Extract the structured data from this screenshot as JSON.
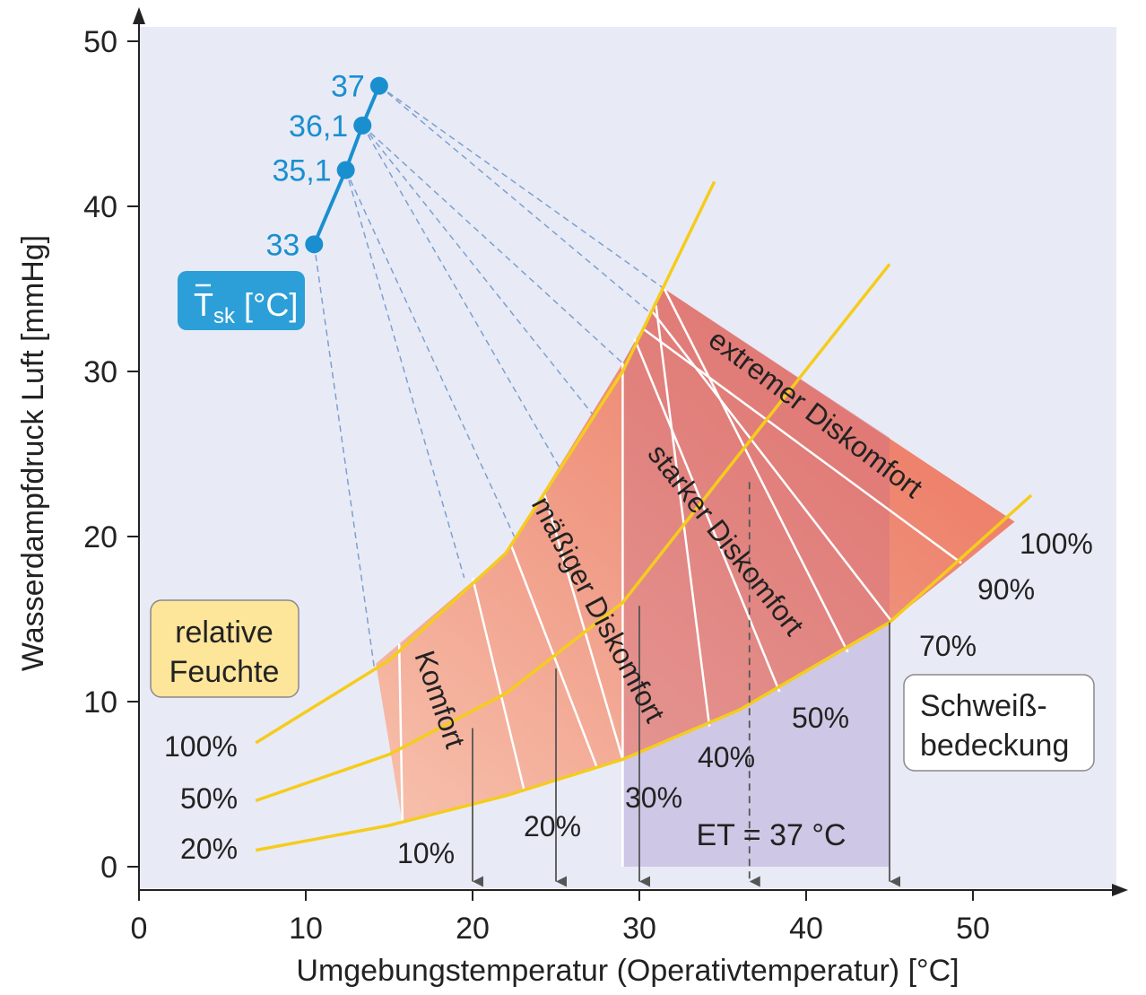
{
  "chart_data": {
    "type": "area",
    "xlabel": "Umgebungstemperatur (Operativtemperatur) [°C]",
    "ylabel": "Wasserdampfdruck Luft [mmHg]",
    "xlim": [
      0,
      58
    ],
    "ylim": [
      0,
      50
    ],
    "x_ticks": [
      "0",
      "10",
      "20",
      "30",
      "40",
      "50"
    ],
    "y_ticks": [
      "0",
      "10",
      "20",
      "30",
      "40",
      "50"
    ],
    "x_tick_values": [
      0,
      10,
      20,
      30,
      40,
      50
    ],
    "y_tick_values": [
      0,
      10,
      20,
      30,
      40,
      50
    ],
    "humidity_curves": [
      {
        "label": "100%",
        "points": [
          [
            7,
            7.5
          ],
          [
            15,
            12.5
          ],
          [
            22,
            19
          ],
          [
            29,
            30
          ],
          [
            34.5,
            41.5
          ]
        ]
      },
      {
        "label": "50%",
        "points": [
          [
            7,
            4
          ],
          [
            15,
            6.8
          ],
          [
            22,
            10.5
          ],
          [
            29,
            16
          ],
          [
            36,
            25
          ],
          [
            45,
            36.5
          ]
        ]
      },
      {
        "label": "20%",
        "points": [
          [
            7,
            1
          ],
          [
            15,
            2.5
          ],
          [
            22,
            4.3
          ],
          [
            29,
            6.5
          ],
          [
            36,
            9.5
          ],
          [
            45,
            14.8
          ],
          [
            53.5,
            22.5
          ]
        ]
      }
    ],
    "skin_temperatures": [
      {
        "label": "33",
        "x": 10.5,
        "y": 37.7
      },
      {
        "label": "35,1",
        "x": 12.4,
        "y": 42.2
      },
      {
        "label": "36,1",
        "x": 13.4,
        "y": 44.9
      },
      {
        "label": "37",
        "x": 14.4,
        "y": 47.3
      }
    ],
    "skin_label_box": {
      "symbol": "T",
      "subscript": "sk",
      "unit": " [°C]"
    },
    "humidity_box": {
      "line1": "relative",
      "line2": "Feuchte"
    },
    "sweat_box": {
      "line1": "Schweiß-",
      "line2": "bedeckung"
    },
    "zones": [
      {
        "label": "Komfort",
        "color": "#f4a892"
      },
      {
        "label": "mäßiger Diskomfort",
        "color": "#ee8f7a"
      },
      {
        "label": "starker Diskomfort",
        "color": "#d97f86"
      },
      {
        "label": "extremer Diskomfort",
        "color": "#ec735e"
      }
    ],
    "sweat_labels": [
      "10%",
      "20%",
      "30%",
      "40%",
      "50%",
      "70%",
      "90%",
      "100%"
    ],
    "rh_labels": [
      "100%",
      "50%",
      "20%"
    ],
    "et_label": "ET = 37 °C",
    "arrows_x": [
      20,
      25,
      30,
      45
    ],
    "dashed_arrow_x": 36.6
  }
}
